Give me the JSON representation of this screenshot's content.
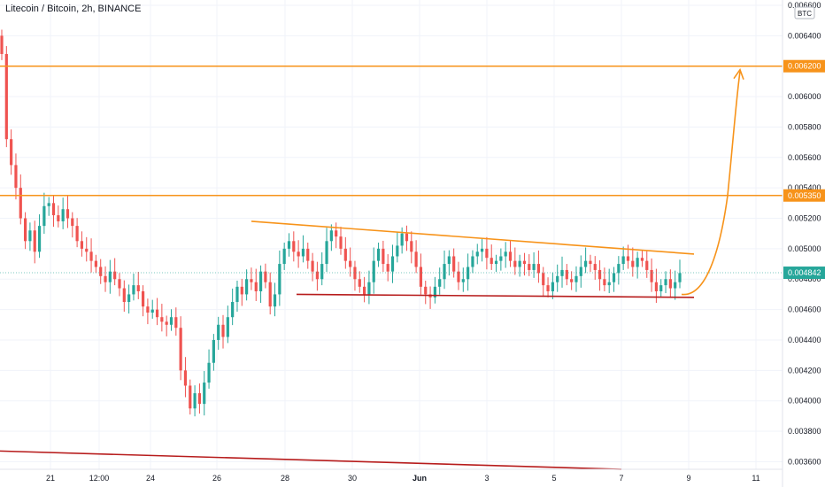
{
  "header": {
    "symbol_title": "Litecoin / Bitcoin, 2h, BINANCE"
  },
  "chart_data": {
    "type": "candlestick",
    "title": "Litecoin / Bitcoin, 2h, BINANCE",
    "currency_label": "BTC",
    "y_range": [
      0.00355,
      0.0066
    ],
    "y_ticks": [
      "0.006600",
      "0.006400",
      "0.006200",
      "0.006000",
      "0.005800",
      "0.005600",
      "0.005400",
      "0.005200",
      "0.005000",
      "0.004800",
      "0.004600",
      "0.004400",
      "0.004200",
      "0.004000",
      "0.003800",
      "0.003600"
    ],
    "x_ticks": [
      "21",
      "12:00",
      "24",
      "26",
      "28",
      "30",
      "Jun",
      "3",
      "5",
      "7",
      "9",
      "11"
    ],
    "price_labels": {
      "resistance_high": "0.006200",
      "resistance_mid": "0.005350",
      "current": "0.004842"
    },
    "horizontal_levels": [
      {
        "price": 0.0062,
        "color": "#f7931a"
      },
      {
        "price": 0.00535,
        "color": "#f7931a"
      }
    ],
    "trendlines": [
      {
        "from": [
          "Day 27",
          0.00518
        ],
        "to": [
          "Day 9",
          0.004965
        ],
        "color": "#f7931a"
      },
      {
        "from": [
          "Day 28",
          0.0047
        ],
        "to": [
          "Day 9",
          0.00468
        ],
        "color": "#b71c1c"
      },
      {
        "from": [
          "Start",
          0.00367
        ],
        "to": [
          "Day 7",
          0.00355
        ],
        "color": "#b71c1c"
      }
    ],
    "projection": {
      "from_price": 0.0047,
      "to_price": 0.0062,
      "color": "#f7931a"
    },
    "colors": {
      "up": "#26a69a",
      "down": "#ef5350"
    },
    "grid": true,
    "candles_close_path": [
      0.00628,
      0.00572,
      0.00555,
      0.0054,
      0.0052,
      0.00505,
      0.00512,
      0.00498,
      0.00515,
      0.00528,
      0.0053,
      0.00522,
      0.00518,
      0.00526,
      0.0052,
      0.00515,
      0.00505,
      0.005,
      0.00498,
      0.00492,
      0.00488,
      0.00482,
      0.00478,
      0.00485,
      0.0048,
      0.00474,
      0.00465,
      0.0047,
      0.00476,
      0.00472,
      0.00462,
      0.00458,
      0.0046,
      0.00455,
      0.00452,
      0.0045,
      0.00455,
      0.00448,
      0.0042,
      0.0041,
      0.00395,
      0.00405,
      0.00398,
      0.00412,
      0.00425,
      0.0044,
      0.0045,
      0.00442,
      0.00455,
      0.00465,
      0.00475,
      0.0047,
      0.0048,
      0.00478,
      0.00472,
      0.00485,
      0.00478,
      0.00462,
      0.0047,
      0.0049,
      0.005,
      0.00505,
      0.00498,
      0.00495,
      0.005,
      0.00492,
      0.00485,
      0.0048,
      0.0049,
      0.00505,
      0.00512,
      0.00508,
      0.005,
      0.00492,
      0.00488,
      0.0048,
      0.00475,
      0.0047,
      0.00478,
      0.00492,
      0.005,
      0.0049,
      0.00485,
      0.00495,
      0.00502,
      0.0051,
      0.00505,
      0.00498,
      0.00488,
      0.00475,
      0.0047,
      0.00468,
      0.00475,
      0.0048,
      0.0049,
      0.00495,
      0.00485,
      0.00478,
      0.0048,
      0.00488,
      0.00495,
      0.00498,
      0.005,
      0.00494,
      0.0049,
      0.00492,
      0.00495,
      0.00498,
      0.00492,
      0.00488,
      0.00492,
      0.0049,
      0.00486,
      0.0049,
      0.00484,
      0.00476,
      0.00472,
      0.00478,
      0.00482,
      0.00486,
      0.0048,
      0.00478,
      0.00482,
      0.00488,
      0.00492,
      0.0049,
      0.00486,
      0.0048,
      0.00476,
      0.00478,
      0.00484,
      0.0049,
      0.00495,
      0.00492,
      0.00488,
      0.00494,
      0.00492,
      0.00486,
      0.00478,
      0.00472,
      0.00476,
      0.0048,
      0.00474,
      0.00478,
      0.00484
    ]
  }
}
